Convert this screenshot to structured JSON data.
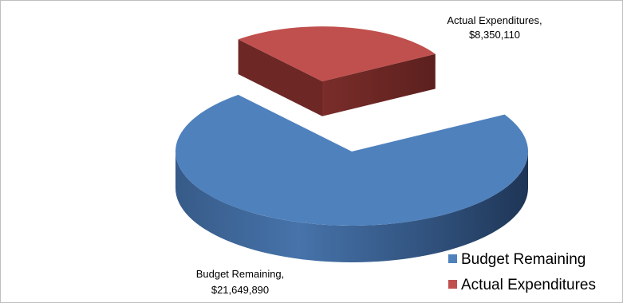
{
  "chart_data": {
    "type": "pie",
    "style": "3d-exploded",
    "labels": [
      "Budget Remaining",
      "Actual Expenditures"
    ],
    "values": [
      21649890,
      8350110
    ],
    "data_labels": [
      {
        "name": "Budget Remaining,",
        "value": "$21,649,890"
      },
      {
        "name": "Actual Expenditures,",
        "value": "$8,350,110"
      }
    ],
    "legend": [
      {
        "label": "Budget Remaining",
        "color": "#4f81bd"
      },
      {
        "label": "Actual Expenditures",
        "color": "#c0504d"
      }
    ],
    "legend_position": "bottom-right",
    "colors": {
      "budget_remaining": "#4f81bd",
      "actual_expenditures": "#c0504d"
    }
  }
}
